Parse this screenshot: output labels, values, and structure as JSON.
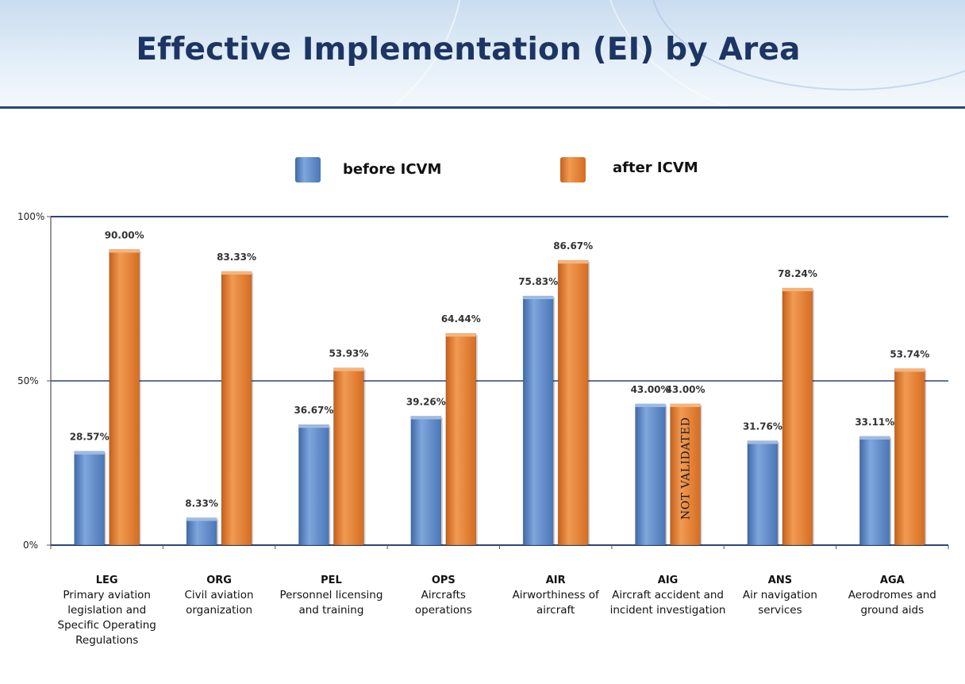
{
  "page": {
    "title": "Effective Implementation (EI) by Area"
  },
  "colors": {
    "before": "#5b87c5",
    "after": "#e07b2e",
    "axis": "#2a4673",
    "title": "#1c3563"
  },
  "chart_data": {
    "type": "bar",
    "title": "Effective Implementation (EI) by Area",
    "xlabel": "",
    "ylabel": "",
    "ylim": [
      0,
      100
    ],
    "y_ticks": [
      "0%",
      "50%",
      "100%"
    ],
    "grid": "horizontal lines at 50% and 100%",
    "legend_position": "top-center",
    "categories": [
      {
        "code": "LEG",
        "desc": [
          "Primary aviation",
          "legislation and",
          "Specific Operating",
          "Regulations"
        ]
      },
      {
        "code": "ORG",
        "desc": [
          "Civil aviation",
          "organization"
        ]
      },
      {
        "code": "PEL",
        "desc": [
          "Personnel licensing",
          "and training"
        ]
      },
      {
        "code": "OPS",
        "desc": [
          "Aircrafts",
          "operations"
        ]
      },
      {
        "code": "AIR",
        "desc": [
          "Airworthiness of",
          "aircraft"
        ]
      },
      {
        "code": "AIG",
        "desc": [
          "Aircraft accident and",
          "incident investigation"
        ]
      },
      {
        "code": "ANS",
        "desc": [
          "Air navigation",
          "services"
        ]
      },
      {
        "code": "AGA",
        "desc": [
          "Aerodromes and",
          "ground aids"
        ]
      }
    ],
    "series": [
      {
        "name": "before ICVM",
        "values": [
          28.57,
          8.33,
          36.67,
          39.26,
          75.83,
          43.0,
          31.76,
          33.11
        ],
        "labels": [
          "28.57%",
          "8.33%",
          "36.67%",
          "39.26%",
          "75.83%",
          "43.00%",
          "31.76%",
          "33.11%"
        ]
      },
      {
        "name": "after ICVM",
        "values": [
          90.0,
          83.33,
          53.93,
          64.44,
          86.67,
          43.0,
          78.24,
          53.74
        ],
        "labels": [
          "90.00%",
          "83.33%",
          "53.93%",
          "64.44%",
          "86.67%",
          "43.00%",
          "78.24%",
          "53.74%"
        ]
      }
    ],
    "annotations": [
      {
        "category": "AIG",
        "series": "after ICVM",
        "text": "NOT VALIDATED"
      }
    ]
  }
}
